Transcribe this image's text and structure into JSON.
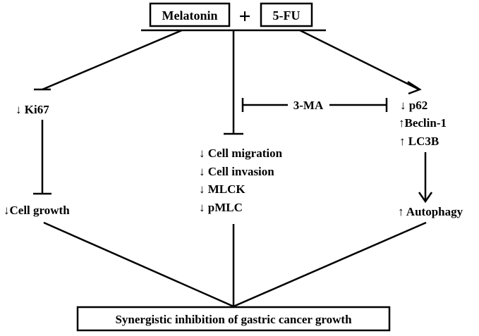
{
  "top": {
    "drug1": "Melatonin",
    "plus": "+",
    "drug2": "5-FU"
  },
  "left": {
    "ki67": "↓ Ki67",
    "growth": "↓Cell growth"
  },
  "middle": {
    "line1": "↓ Cell migration",
    "line2": "↓ Cell invasion",
    "line3": "↓  MLCK",
    "line4": "↓   pMLC"
  },
  "inhibitor": "3-MA",
  "right": {
    "p62": "↓ p62",
    "beclin": "↑Beclin-1",
    "lc3b": "↑ LC3B",
    "autophagy": "↑ Autophagy"
  },
  "bottom": "Synergistic inhibition of gastric cancer growth"
}
